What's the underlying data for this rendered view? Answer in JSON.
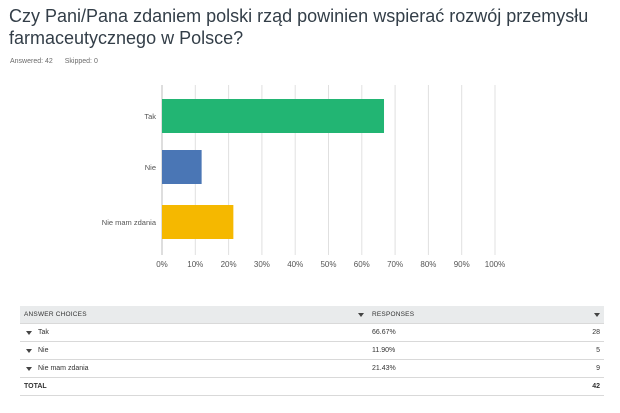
{
  "question": {
    "title": "Czy Pani/Pana zdaniem polski rząd powinien wspierać rozwój przemysłu farmaceutycznego w Polsce?",
    "answered_label": "Answered: 42",
    "skipped_label": "Skipped: 0"
  },
  "colors": {
    "tak": "#22b573",
    "nie": "#4a76b5",
    "nie_mam_zdania": "#f5b800",
    "grid": "#e0e0e0"
  },
  "chart_data": {
    "type": "bar",
    "orientation": "horizontal",
    "categories": [
      "Tak",
      "Nie",
      "Nie mam zdania"
    ],
    "values": [
      66.67,
      11.9,
      21.43
    ],
    "x_ticks": [
      "0%",
      "10%",
      "20%",
      "30%",
      "40%",
      "50%",
      "60%",
      "70%",
      "80%",
      "90%",
      "100%"
    ],
    "xlim": [
      0,
      100
    ],
    "grid": true
  },
  "table": {
    "headers": {
      "choices": "ANSWER CHOICES",
      "responses": "RESPONSES"
    },
    "rows": [
      {
        "choice": "Tak",
        "percent": "66.67%",
        "count": "28"
      },
      {
        "choice": "Nie",
        "percent": "11.90%",
        "count": "5"
      },
      {
        "choice": "Nie mam zdania",
        "percent": "21.43%",
        "count": "9"
      }
    ],
    "total_label": "TOTAL",
    "total_value": "42"
  }
}
